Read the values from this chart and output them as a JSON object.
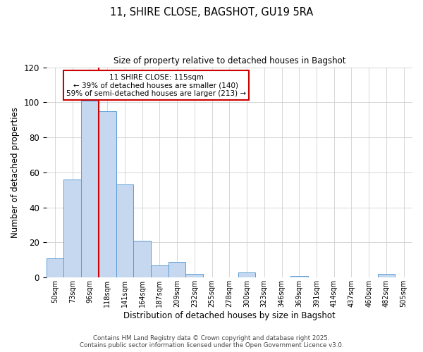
{
  "title": "11, SHIRE CLOSE, BAGSHOT, GU19 5RA",
  "subtitle": "Size of property relative to detached houses in Bagshot",
  "xlabel": "Distribution of detached houses by size in Bagshot",
  "ylabel": "Number of detached properties",
  "bar_labels": [
    "50sqm",
    "73sqm",
    "96sqm",
    "118sqm",
    "141sqm",
    "164sqm",
    "187sqm",
    "209sqm",
    "232sqm",
    "255sqm",
    "278sqm",
    "300sqm",
    "323sqm",
    "346sqm",
    "369sqm",
    "391sqm",
    "414sqm",
    "437sqm",
    "460sqm",
    "482sqm",
    "505sqm"
  ],
  "bar_values": [
    11,
    56,
    101,
    95,
    53,
    21,
    7,
    9,
    2,
    0,
    0,
    3,
    0,
    0,
    1,
    0,
    0,
    0,
    0,
    2,
    0
  ],
  "bar_color": "#c5d8f0",
  "bar_edge_color": "#5b9bd5",
  "ylim": [
    0,
    120
  ],
  "yticks": [
    0,
    20,
    40,
    60,
    80,
    100,
    120
  ],
  "vline_color": "#cc0000",
  "annotation_title": "11 SHIRE CLOSE: 115sqm",
  "annotation_line1": "← 39% of detached houses are smaller (140)",
  "annotation_line2": "59% of semi-detached houses are larger (213) →",
  "annotation_box_color": "#ffffff",
  "annotation_box_edge": "#cc0000",
  "footer1": "Contains HM Land Registry data © Crown copyright and database right 2025.",
  "footer2": "Contains public sector information licensed under the Open Government Licence v3.0.",
  "background_color": "#ffffff",
  "grid_color": "#d0d0d0"
}
